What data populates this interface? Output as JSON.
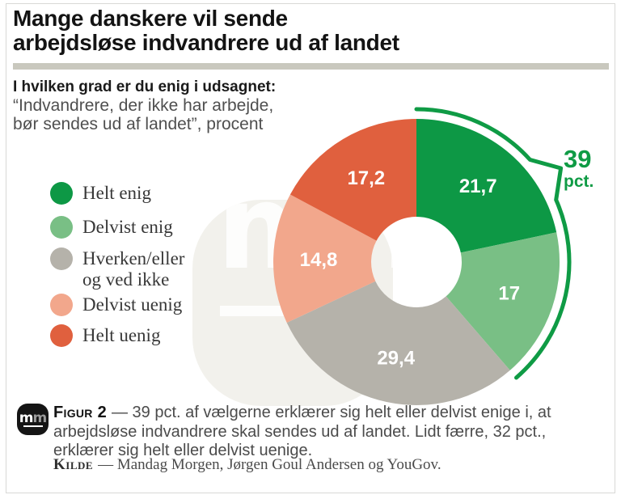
{
  "figure": {
    "title_line1": "Mange danskere vil sende",
    "title_line2": "arbejdsløse indvandrere ud af landet",
    "question_heading": "I hvilken grad er du enig i udsagnet:",
    "quote_line1": "“Indvandrere, der ikke har arbejde,",
    "quote_line2": "bør sendes ud af landet”, procent"
  },
  "chart_data": {
    "type": "pie",
    "subtype": "donut",
    "unit": "procent",
    "start_angle_deg": 0,
    "direction": "clockwise",
    "series": [
      {
        "label": "Helt enig",
        "value": 21.7,
        "display": "21,7",
        "color": "#0d9845"
      },
      {
        "label": "Delvist enig",
        "value": 17.0,
        "display": "17",
        "color": "#79bf85"
      },
      {
        "label": "Hverken/eller og ved ikke",
        "value": 29.4,
        "display": "29,4",
        "color": "#b5b2aa"
      },
      {
        "label": "Delvist uenig",
        "value": 14.8,
        "display": "14,8",
        "color": "#f2a78c"
      },
      {
        "label": "Helt uenig",
        "value": 17.2,
        "display": "17,2",
        "color": "#e0603e"
      }
    ],
    "callout": {
      "value": "39",
      "unit": "pct.",
      "covers": [
        "Helt enig",
        "Delvist enig"
      ],
      "color": "#0f9b45"
    }
  },
  "legend": {
    "items": [
      {
        "line1": "Helt enig"
      },
      {
        "line1": "Delvist enig"
      },
      {
        "line1": "Hverken/eller",
        "line2": "og ved ikke"
      },
      {
        "line1": "Delvist uenig"
      },
      {
        "line1": "Helt uenig"
      }
    ]
  },
  "watermark": {
    "text": "mm"
  },
  "footer": {
    "logo": {
      "m1": "m",
      "m2": "m"
    },
    "figur_label": "Figur 2",
    "figur_text": "— 39 pct. af vælgerne erklærer sig helt eller delvist enige i, at arbejdsløse indvandrere skal sendes ud af landet. Lidt færre, 32 pct., erklærer sig helt eller delvist uenige.",
    "kilde_label": "Kilde",
    "kilde_text": "— Mandag Morgen, Jørgen Goul Andersen og YouGov."
  }
}
